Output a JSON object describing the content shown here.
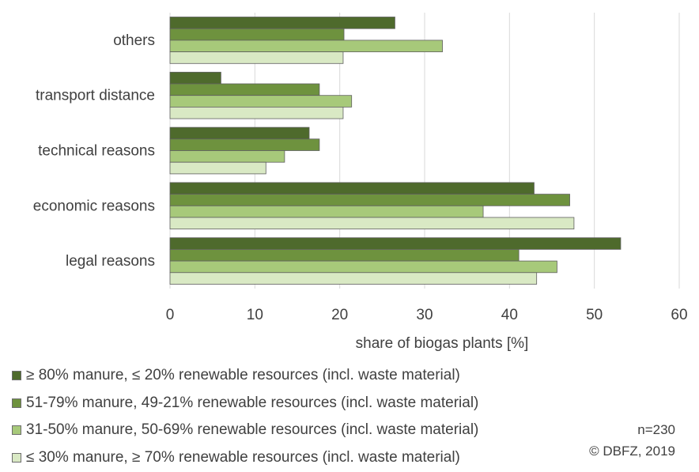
{
  "chart_data": {
    "type": "bar",
    "orientation": "horizontal",
    "categories": [
      "others",
      "transport distance",
      "technical reasons",
      "economic reasons",
      "legal reasons"
    ],
    "series": [
      {
        "name": "≥ 80% manure, ≤ 20% renewable resources (incl. waste material)",
        "color": "#4e6a2c",
        "values": [
          26.5,
          6.0,
          16.4,
          42.9,
          53.1
        ]
      },
      {
        "name": "51-79% manure, 49-21% renewable resources  (incl. waste material)",
        "color": "#6e923e",
        "values": [
          20.5,
          17.6,
          17.6,
          47.1,
          41.1
        ]
      },
      {
        "name": "31-50% manure, 50-69% renewable resources (incl. waste material)",
        "color": "#a7c97a",
        "values": [
          32.1,
          21.4,
          13.5,
          36.9,
          45.6
        ]
      },
      {
        "name": "≤ 30% manure, ≥ 70% renewable resources  (incl. waste material)",
        "color": "#d9e9c4",
        "values": [
          20.4,
          20.4,
          11.3,
          47.6,
          43.2
        ]
      }
    ],
    "xlabel": "share of biogas plants [%]",
    "ylabel": "",
    "xlim": [
      0,
      60
    ],
    "xticks": [
      "0",
      "10",
      "20",
      "30",
      "40",
      "50",
      "60"
    ],
    "grid": true,
    "legend_position": "bottom"
  },
  "notes": {
    "sample_size": "n=230",
    "copyright": "© DBFZ, 2019"
  }
}
